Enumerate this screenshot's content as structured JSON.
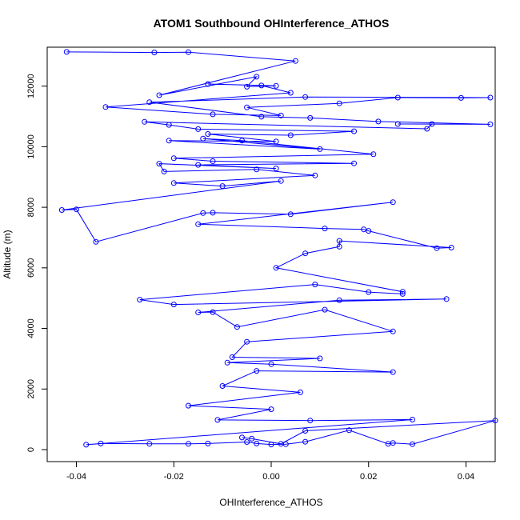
{
  "chart_data": {
    "type": "line",
    "title": "ATOM1 Southbound OHInterference_ATHOS",
    "xlabel": "OHInterference_ATHOS",
    "ylabel": "Altitude (m)",
    "xlim": [
      -0.046,
      0.046
    ],
    "ylim": [
      0,
      13100
    ],
    "xticks": [
      -0.04,
      -0.02,
      0.0,
      0.02,
      0.04
    ],
    "xtick_labels": [
      "-0.04",
      "-0.02",
      "0.00",
      "0.02",
      "0.04"
    ],
    "yticks": [
      0,
      2000,
      4000,
      6000,
      8000,
      10000,
      12000
    ],
    "ytick_labels": [
      "0",
      "2000",
      "4000",
      "6000",
      "8000",
      "10000",
      "12000"
    ],
    "grid": false,
    "series": [
      {
        "color": "#0000ff",
        "marker": "open-circle",
        "points": [
          [
            -0.042,
            13130
          ],
          [
            -0.024,
            13110
          ],
          [
            -0.017,
            13120
          ],
          [
            0.005,
            12830
          ],
          [
            -0.023,
            11700
          ],
          [
            -0.003,
            12310
          ],
          [
            -0.005,
            11980
          ],
          [
            0.001,
            12010
          ],
          [
            -0.013,
            12070
          ],
          [
            -0.002,
            12020
          ],
          [
            0.004,
            11780
          ],
          [
            -0.034,
            11310
          ],
          [
            -0.012,
            11070
          ],
          [
            0.002,
            11030
          ],
          [
            -0.005,
            11300
          ],
          [
            0.014,
            11430
          ],
          [
            0.026,
            11620
          ],
          [
            0.039,
            11610
          ],
          [
            0.045,
            11620
          ],
          [
            0.007,
            11640
          ],
          [
            -0.025,
            11470
          ],
          [
            -0.002,
            10990
          ],
          [
            0.008,
            10950
          ],
          [
            0.022,
            10830
          ],
          [
            0.045,
            10740
          ],
          [
            0.026,
            10750
          ],
          [
            0.033,
            10750
          ],
          [
            0.032,
            10590
          ],
          [
            -0.026,
            10820
          ],
          [
            -0.021,
            10720
          ],
          [
            -0.015,
            10580
          ],
          [
            0.017,
            10510
          ],
          [
            0.004,
            10380
          ],
          [
            -0.013,
            10420
          ],
          [
            0.001,
            10170
          ],
          [
            -0.021,
            10200
          ],
          [
            0.01,
            9920
          ],
          [
            -0.014,
            10270
          ],
          [
            -0.006,
            10200
          ],
          [
            0.021,
            9750
          ],
          [
            -0.02,
            9620
          ],
          [
            -0.012,
            9520
          ],
          [
            0.017,
            9450
          ],
          [
            -0.015,
            9400
          ],
          [
            0.001,
            9280
          ],
          [
            -0.023,
            9440
          ],
          [
            -0.022,
            9180
          ],
          [
            -0.003,
            9250
          ],
          [
            0.009,
            9050
          ],
          [
            -0.02,
            8800
          ],
          [
            -0.01,
            8700
          ],
          [
            0.002,
            8870
          ],
          [
            -0.043,
            7910
          ],
          [
            -0.04,
            7930
          ],
          [
            -0.036,
            6860
          ],
          [
            -0.014,
            7810
          ],
          [
            -0.012,
            7820
          ],
          [
            0.004,
            7770
          ],
          [
            0.025,
            8170
          ],
          [
            -0.015,
            7440
          ],
          [
            0.011,
            7300
          ],
          [
            0.019,
            7270
          ],
          [
            0.02,
            7220
          ],
          [
            0.034,
            6650
          ],
          [
            0.037,
            6670
          ],
          [
            0.014,
            6890
          ],
          [
            0.014,
            6700
          ],
          [
            0.007,
            6480
          ],
          [
            0.001,
            6000
          ],
          [
            0.027,
            5210
          ],
          [
            0.027,
            5140
          ],
          [
            0.02,
            5200
          ],
          [
            0.009,
            5450
          ],
          [
            -0.027,
            4950
          ],
          [
            -0.02,
            4790
          ],
          [
            0.036,
            4970
          ],
          [
            0.014,
            4930
          ],
          [
            -0.015,
            4530
          ],
          [
            -0.012,
            4540
          ],
          [
            -0.007,
            4050
          ],
          [
            0.011,
            4620
          ],
          [
            0.025,
            3900
          ],
          [
            -0.005,
            3560
          ],
          [
            -0.008,
            3050
          ],
          [
            0.01,
            3010
          ],
          [
            -0.009,
            2870
          ],
          [
            0.0,
            2820
          ],
          [
            0.025,
            2560
          ],
          [
            -0.003,
            2600
          ],
          [
            -0.01,
            2100
          ],
          [
            0.006,
            1890
          ],
          [
            -0.017,
            1450
          ],
          [
            0.0,
            1330
          ],
          [
            -0.011,
            980
          ],
          [
            0.008,
            960
          ],
          [
            0.029,
            990
          ],
          [
            -0.038,
            160
          ],
          [
            -0.035,
            200
          ],
          [
            -0.025,
            190
          ],
          [
            -0.017,
            190
          ],
          [
            -0.013,
            200
          ],
          [
            -0.005,
            250
          ],
          [
            -0.003,
            200
          ],
          [
            0.0,
            170
          ],
          [
            0.003,
            180
          ],
          [
            0.007,
            260
          ],
          [
            0.016,
            640
          ],
          [
            0.024,
            190
          ],
          [
            0.025,
            220
          ],
          [
            0.029,
            180
          ],
          [
            0.046,
            960
          ],
          [
            0.007,
            620
          ],
          [
            0.002,
            190
          ],
          [
            -0.004,
            360
          ],
          [
            -0.006,
            400
          ]
        ]
      }
    ]
  }
}
